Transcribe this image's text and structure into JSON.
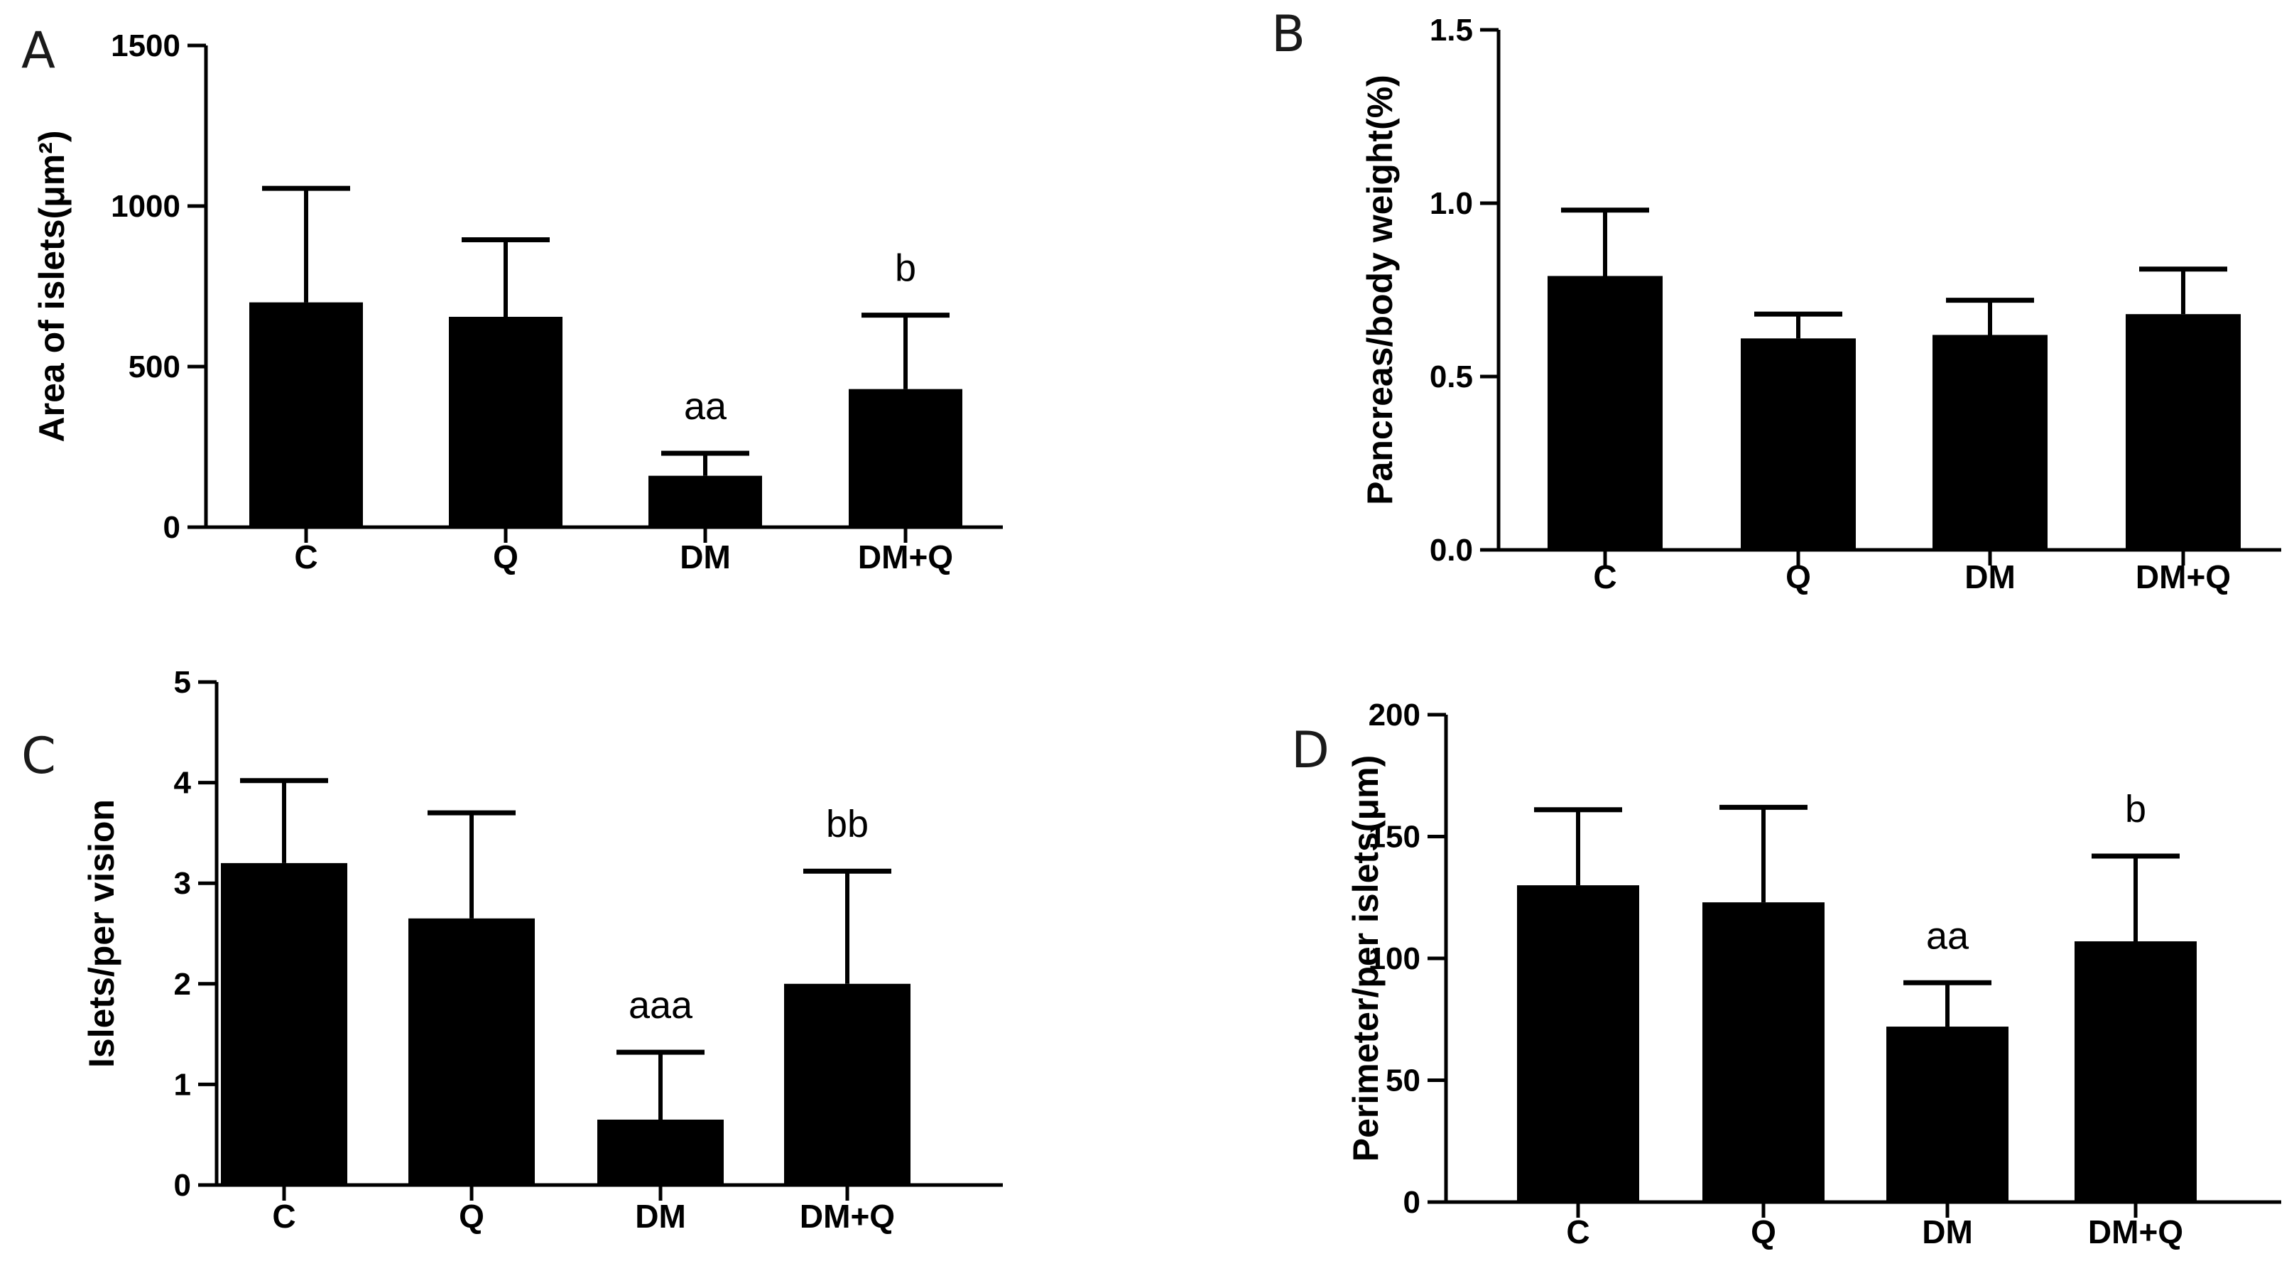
{
  "chart_data": [
    {
      "panel": "A",
      "type": "bar",
      "ylabel": "Area of islets(μm²)",
      "categories": [
        "C",
        "Q",
        "DM",
        "DM+Q"
      ],
      "values": [
        700,
        655,
        160,
        430
      ],
      "errors": [
        355,
        240,
        70,
        230
      ],
      "annotations": [
        "",
        "",
        "aa",
        "b"
      ],
      "ylim": [
        0,
        1500
      ],
      "yticks": [
        "0",
        "500",
        "1000",
        "1500"
      ]
    },
    {
      "panel": "B",
      "type": "bar",
      "ylabel": "Pancreas/body weight(%)",
      "categories": [
        "C",
        "Q",
        "DM",
        "DM+Q"
      ],
      "values": [
        0.79,
        0.61,
        0.62,
        0.68
      ],
      "errors": [
        0.19,
        0.07,
        0.1,
        0.13
      ],
      "annotations": [
        "",
        "",
        "",
        ""
      ],
      "ylim": [
        0,
        1.5
      ],
      "yticks": [
        "0.0",
        "0.5",
        "1.0",
        "1.5"
      ]
    },
    {
      "panel": "C",
      "type": "bar",
      "ylabel": "Islets/per vision",
      "categories": [
        "C",
        "Q",
        "DM",
        "DM+Q"
      ],
      "values": [
        3.2,
        2.65,
        0.65,
        2.0
      ],
      "errors": [
        0.82,
        1.05,
        0.67,
        1.12
      ],
      "annotations": [
        "",
        "",
        "aaa",
        "bb"
      ],
      "ylim": [
        0,
        5
      ],
      "yticks": [
        "0",
        "1",
        "2",
        "3",
        "4",
        "5"
      ]
    },
    {
      "panel": "D",
      "type": "bar",
      "ylabel": "Perimeter/per islets(μm)",
      "categories": [
        "C",
        "Q",
        "DM",
        "DM+Q"
      ],
      "values": [
        130,
        123,
        72,
        107
      ],
      "errors": [
        31,
        39,
        18,
        35
      ],
      "annotations": [
        "",
        "",
        "aa",
        "b"
      ],
      "ylim": [
        0,
        200
      ],
      "yticks": [
        "0",
        "50",
        "100",
        "150",
        "200"
      ]
    }
  ]
}
